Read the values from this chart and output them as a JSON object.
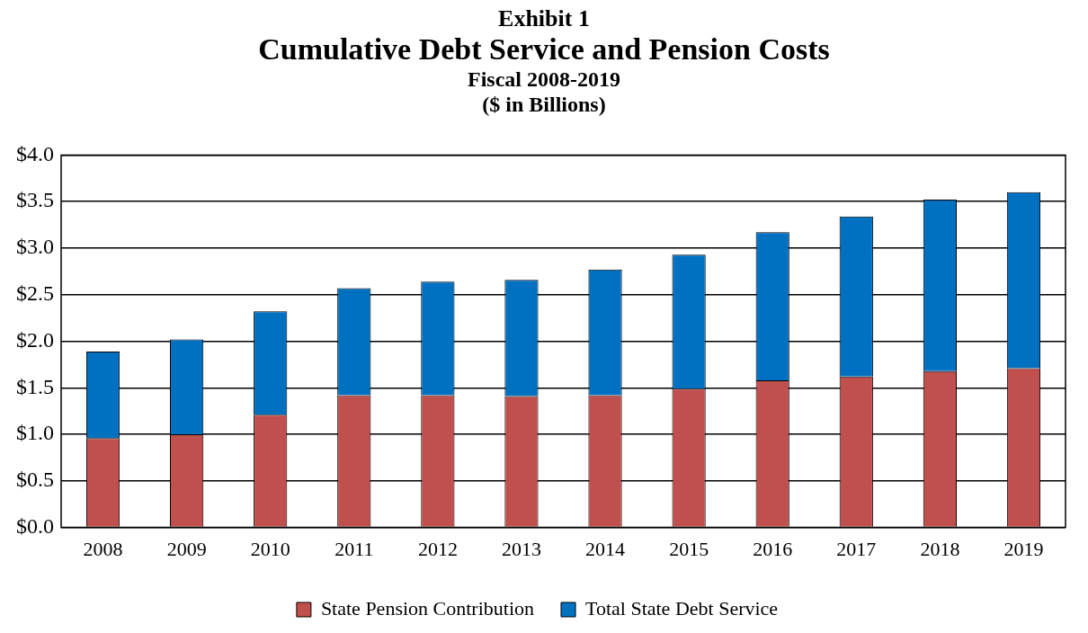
{
  "chart_data": {
    "type": "bar",
    "stacked": true,
    "title": "Cumulative Debt Service and Pension Costs",
    "subtitle": "Fiscal 2008-2019\n($ in Billions)",
    "annotations": [
      "Exhibit 1"
    ],
    "categories": [
      "2008",
      "2009",
      "2010",
      "2011",
      "2012",
      "2013",
      "2014",
      "2015",
      "2016",
      "2017",
      "2018",
      "2019"
    ],
    "series": [
      {
        "name": "State Pension Contribution",
        "color": "#c0504d",
        "values": [
          0.96,
          1.0,
          1.21,
          1.42,
          1.42,
          1.41,
          1.42,
          1.49,
          1.58,
          1.62,
          1.68,
          1.71
        ]
      },
      {
        "name": "Total State Debt Service",
        "color": "#0070c0",
        "values": [
          0.93,
          1.02,
          1.11,
          1.15,
          1.22,
          1.25,
          1.35,
          1.44,
          1.59,
          1.72,
          1.84,
          1.89
        ]
      }
    ],
    "ylim": [
      0,
      4
    ],
    "yticks": [
      {
        "value": 0,
        "label": "$0.0"
      },
      {
        "value": 0.5,
        "label": "$0.5"
      },
      {
        "value": 1,
        "label": "$1.0"
      },
      {
        "value": 1.5,
        "label": "$1.5"
      },
      {
        "value": 2,
        "label": "$2.0"
      },
      {
        "value": 2.5,
        "label": "$2.5"
      },
      {
        "value": 3,
        "label": "$3.0"
      },
      {
        "value": 3.5,
        "label": "$3.5"
      },
      {
        "value": 4,
        "label": "$4.0"
      }
    ],
    "grid": "y",
    "legend": "bottom"
  }
}
